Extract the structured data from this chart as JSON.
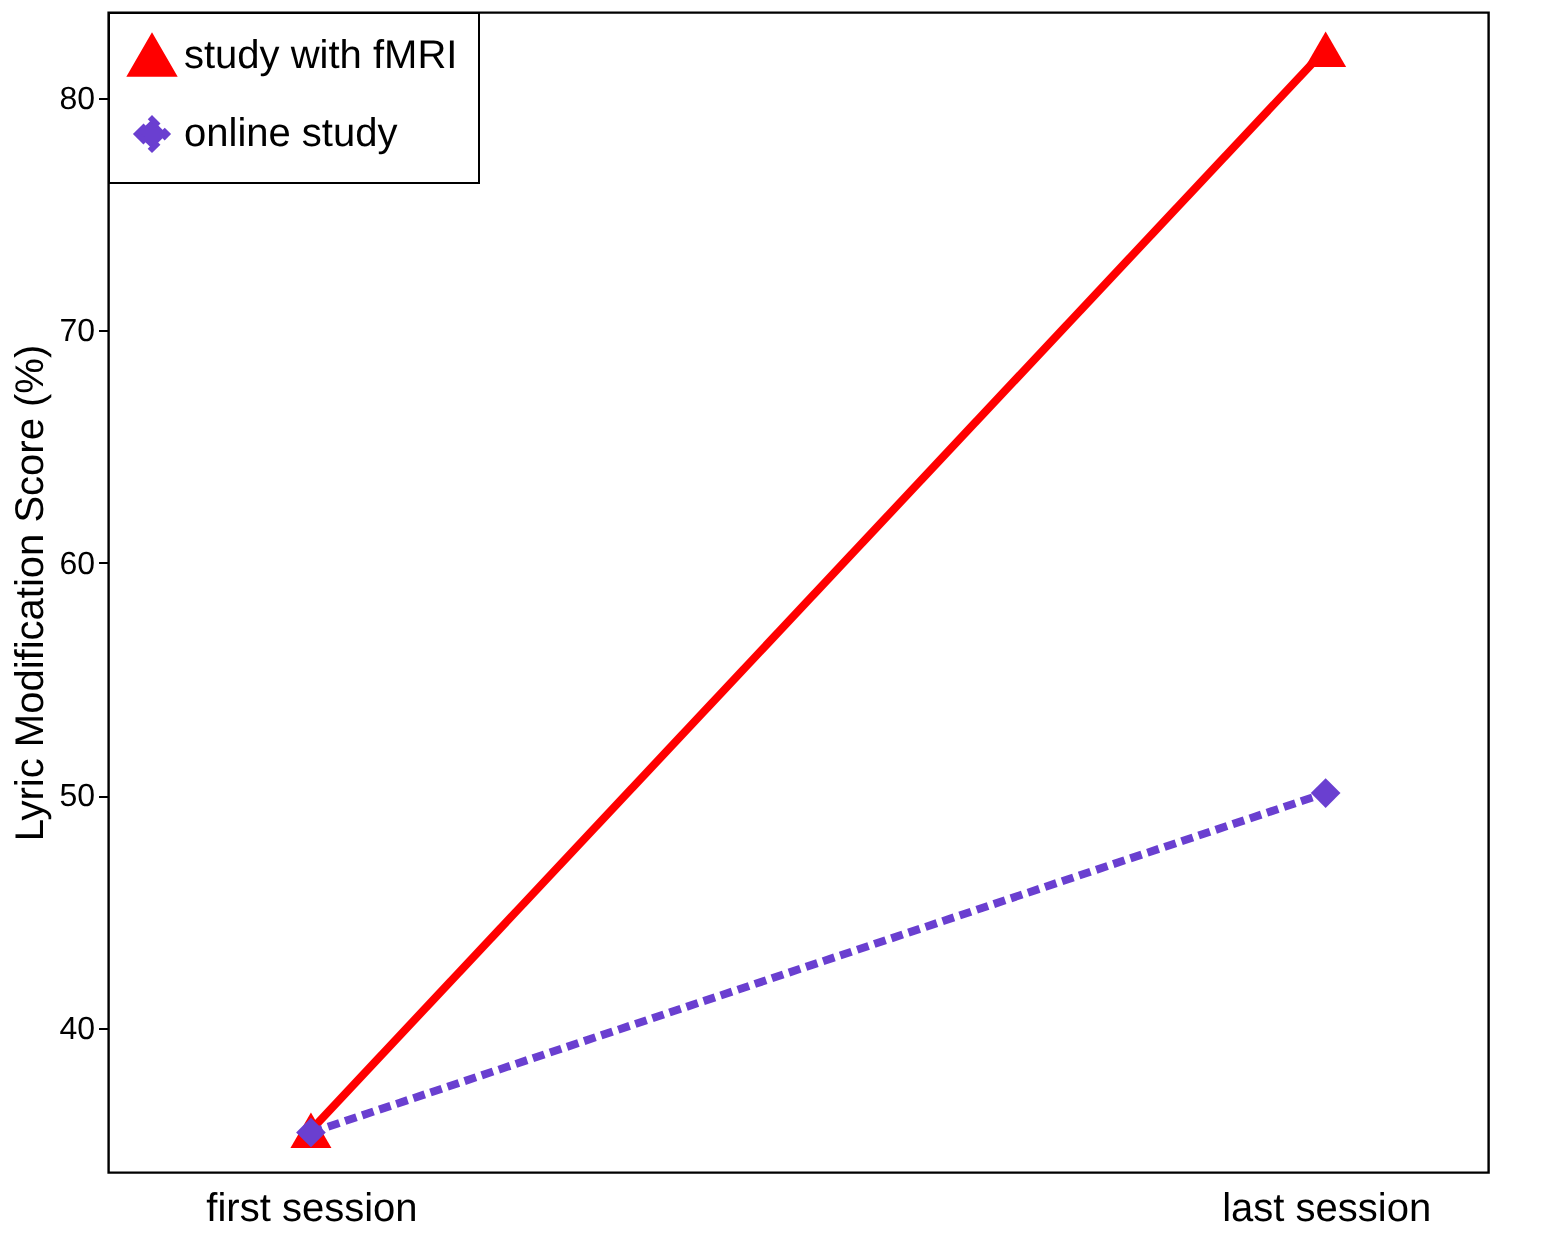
{
  "chart_data": {
    "type": "line",
    "ylabel": "Lyric Modification Score (%)",
    "categories": [
      "first session",
      "last session"
    ],
    "series": [
      {
        "name": "study with fMRI",
        "color": "#ff0000",
        "values": [
          35.6,
          82.1
        ],
        "marker": "triangle",
        "line_style": "solid"
      },
      {
        "name": "online study",
        "color": "#6a3fd0",
        "values": [
          35.5,
          50.1
        ],
        "marker": "diamond",
        "line_style": "dashed"
      }
    ],
    "ylim": [
      33.8,
      83.7
    ],
    "yticks": [
      40,
      50,
      60,
      70,
      80
    ],
    "grid": false,
    "legend": "top left"
  }
}
